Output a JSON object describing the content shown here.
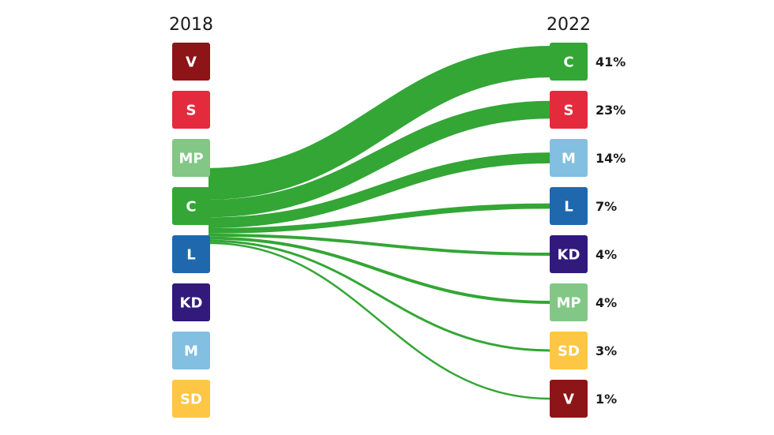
{
  "chart_data": {
    "type": "sankey",
    "source_year": "2018",
    "target_year": "2022",
    "source_parties": [
      {
        "name": "V",
        "color": "#8e1517",
        "text_color": "#ffffff"
      },
      {
        "name": "S",
        "color": "#e32b3d",
        "text_color": "#ffffff"
      },
      {
        "name": "MP",
        "color": "#82c785",
        "text_color": "#ffffff"
      },
      {
        "name": "C",
        "color": "#33a635",
        "text_color": "#ffffff"
      },
      {
        "name": "L",
        "color": "#1f68ae",
        "text_color": "#ffffff"
      },
      {
        "name": "KD",
        "color": "#311a7c",
        "text_color": "#ffffff"
      },
      {
        "name": "M",
        "color": "#82bfe1",
        "text_color": "#ffffff"
      },
      {
        "name": "SD",
        "color": "#fdc645",
        "text_color": "#ffffff"
      }
    ],
    "flow_source": "C",
    "flow_color": "#33a635",
    "flows": [
      {
        "to": "C",
        "value": 41,
        "label": "41%",
        "color": "#33a635",
        "text_color": "#ffffff"
      },
      {
        "to": "S",
        "value": 23,
        "label": "23%",
        "color": "#e32b3d",
        "text_color": "#ffffff"
      },
      {
        "to": "M",
        "value": 14,
        "label": "14%",
        "color": "#82bfe1",
        "text_color": "#ffffff"
      },
      {
        "to": "L",
        "value": 7,
        "label": "7%",
        "color": "#1f68ae",
        "text_color": "#ffffff"
      },
      {
        "to": "KD",
        "value": 4,
        "label": "4%",
        "color": "#311a7c",
        "text_color": "#ffffff"
      },
      {
        "to": "MP",
        "value": 4,
        "label": "4%",
        "color": "#82c785",
        "text_color": "#ffffff"
      },
      {
        "to": "SD",
        "value": 3,
        "label": "3%",
        "color": "#fdc645",
        "text_color": "#ffffff"
      },
      {
        "to": "V",
        "value": 1,
        "label": "1%",
        "color": "#8e1517",
        "text_color": "#ffffff"
      }
    ]
  }
}
